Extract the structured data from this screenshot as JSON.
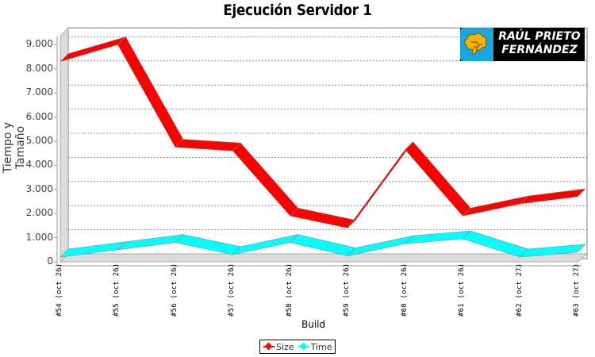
{
  "title": "Ejecución Servidor 1",
  "axes": {
    "ylabel": "Tiempo y Tamaño",
    "xlabel": "Build",
    "yticks": [
      "0",
      "1.000",
      "2.000",
      "3.000",
      "4.000",
      "5.000",
      "6.000",
      "7.000",
      "8.000",
      "9.000"
    ]
  },
  "legend": {
    "items": [
      {
        "label": "Size",
        "color": "#ff0000"
      },
      {
        "label": "Time",
        "color": "#00ffff"
      }
    ]
  },
  "logo": {
    "line1": "RAÚL PRIETO",
    "line2": "FERNÁNDEZ"
  },
  "chart_data": {
    "type": "line",
    "title": "Ejecución Servidor 1",
    "xlabel": "Build",
    "ylabel": "Tiempo y Tamaño",
    "categories": [
      "#54 (oct 26)",
      "#55 (oct 26)",
      "#56 (oct 26)",
      "#57 (oct 26)",
      "#58 (oct 26)",
      "#59 (oct 26)",
      "#60 (oct 26)",
      "#61 (oct 26)",
      "#62 (oct 27)",
      "#63 (oct 27)"
    ],
    "series": [
      {
        "name": "Size",
        "color": "#ff0000",
        "values": [
          8300,
          9000,
          4750,
          4600,
          1900,
          1400,
          4650,
          1900,
          2400,
          2700
        ]
      },
      {
        "name": "Time",
        "color": "#00ffff",
        "values": [
          200,
          500,
          800,
          300,
          800,
          250,
          750,
          950,
          200,
          400
        ]
      }
    ],
    "ylim": [
      0,
      9500
    ],
    "grid": true,
    "legend_position": "bottom",
    "style": "3d-ribbon"
  }
}
